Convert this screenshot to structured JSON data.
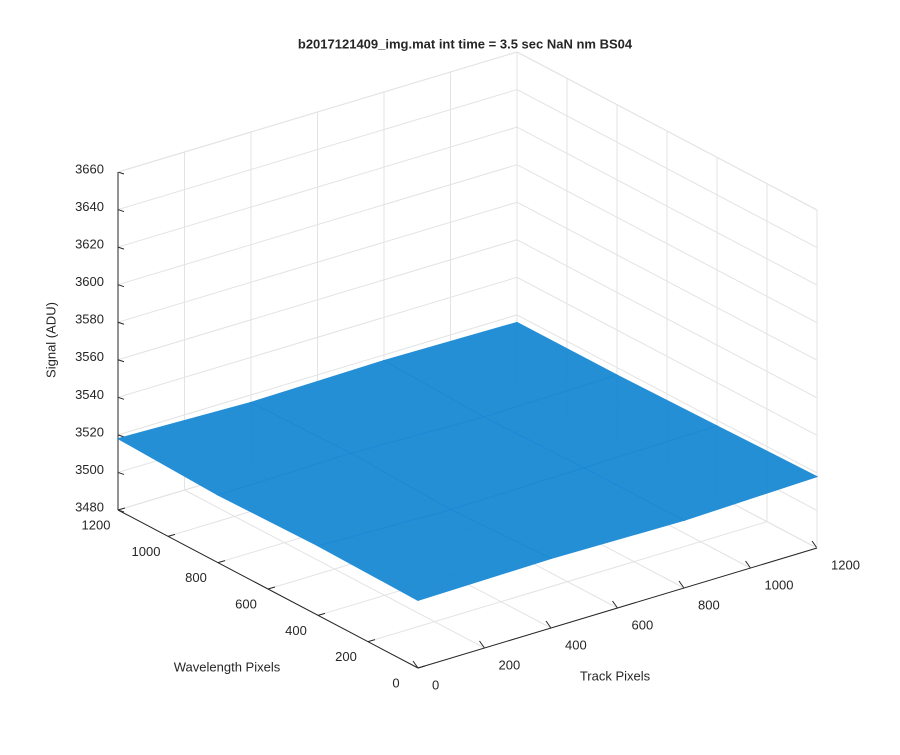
{
  "chart_data": {
    "type": "surface",
    "title": "b2017121409_img.mat int time = 3.5 sec  NaN nm BS04",
    "x_label": "Track Pixels",
    "y_label": "Wavelength Pixels",
    "z_label": "Signal (ADU)",
    "x": [
      0,
      400,
      800,
      1200
    ],
    "y": [
      0,
      400,
      800,
      1200
    ],
    "z": [
      [
        3516,
        3517,
        3516,
        3518
      ],
      [
        3517,
        3515,
        3516,
        3517
      ],
      [
        3516,
        3517,
        3515,
        3516
      ],
      [
        3518,
        3516,
        3517,
        3516
      ]
    ],
    "color": "#1a8ad4",
    "xlim": [
      0,
      1200
    ],
    "ylim": [
      0,
      1200
    ],
    "zlim": [
      3480,
      3660
    ],
    "xticks": [
      0,
      200,
      400,
      600,
      800,
      1000,
      1200
    ],
    "yticks": [
      0,
      200,
      400,
      600,
      800,
      1000,
      1200
    ],
    "zticks": [
      3480,
      3500,
      3520,
      3540,
      3560,
      3580,
      3600,
      3620,
      3640,
      3660
    ],
    "grid": true
  }
}
